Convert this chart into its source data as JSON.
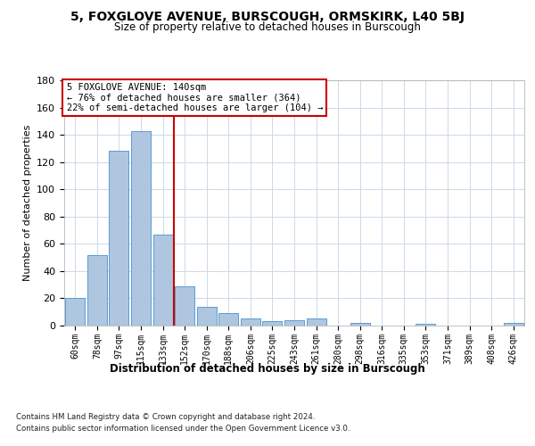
{
  "title": "5, FOXGLOVE AVENUE, BURSCOUGH, ORMSKIRK, L40 5BJ",
  "subtitle": "Size of property relative to detached houses in Burscough",
  "xlabel": "Distribution of detached houses by size in Burscough",
  "ylabel": "Number of detached properties",
  "categories": [
    "60sqm",
    "78sqm",
    "97sqm",
    "115sqm",
    "133sqm",
    "152sqm",
    "170sqm",
    "188sqm",
    "206sqm",
    "225sqm",
    "243sqm",
    "261sqm",
    "280sqm",
    "298sqm",
    "316sqm",
    "335sqm",
    "353sqm",
    "371sqm",
    "389sqm",
    "408sqm",
    "426sqm"
  ],
  "values": [
    20,
    52,
    128,
    143,
    67,
    29,
    14,
    9,
    5,
    3,
    4,
    5,
    0,
    2,
    0,
    0,
    1,
    0,
    0,
    0,
    2
  ],
  "bar_color": "#aec6df",
  "bar_edge_color": "#5b9bd5",
  "vline_color": "#cc0000",
  "annotation_title": "5 FOXGLOVE AVENUE: 140sqm",
  "annotation_line1": "← 76% of detached houses are smaller (364)",
  "annotation_line2": "22% of semi-detached houses are larger (104) →",
  "annotation_box_color": "#ffffff",
  "annotation_box_edge": "#cc0000",
  "ylim": [
    0,
    180
  ],
  "yticks": [
    0,
    20,
    40,
    60,
    80,
    100,
    120,
    140,
    160,
    180
  ],
  "footnote1": "Contains HM Land Registry data © Crown copyright and database right 2024.",
  "footnote2": "Contains public sector information licensed under the Open Government Licence v3.0.",
  "background_color": "#ffffff",
  "grid_color": "#ccd9e8"
}
